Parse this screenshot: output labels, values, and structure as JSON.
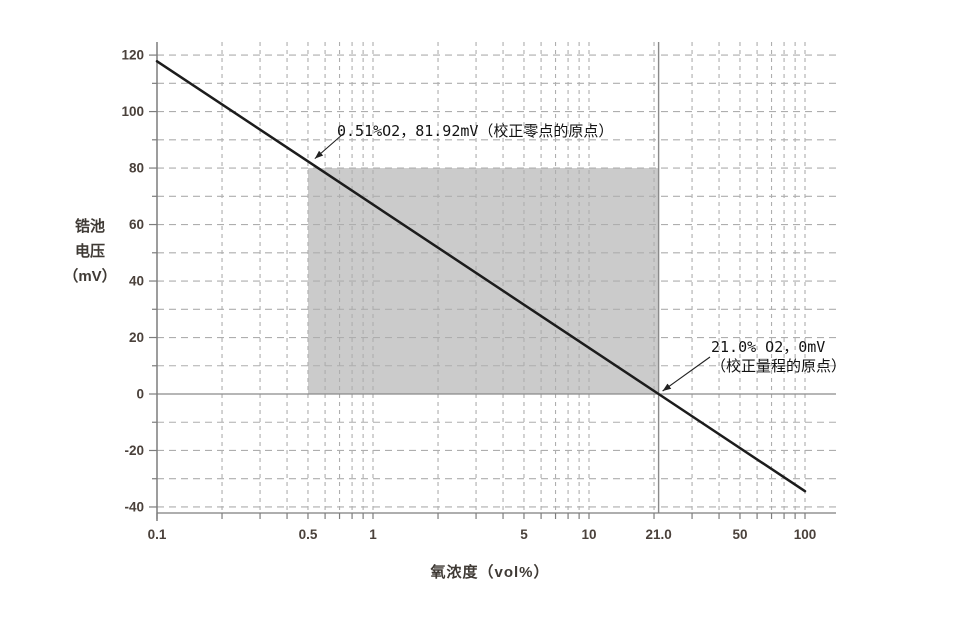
{
  "chart_data": {
    "type": "line",
    "title": "",
    "xlabel": "氧浓度（vol%）",
    "ylabel": "锆池电压（mV）",
    "ylabel_lines": [
      "锆池",
      "电压",
      "（mV）"
    ],
    "x_scale": "log",
    "xlim": [
      0.1,
      139
    ],
    "ylim": [
      -42,
      125
    ],
    "x_tick_values": [
      0.1,
      0.5,
      1,
      5,
      10,
      21.0,
      50,
      100
    ],
    "x_tick_labels": [
      "0.1",
      "0.5",
      "1",
      "5",
      "10",
      "21.0",
      "50",
      "100"
    ],
    "y_tick_values": [
      -40,
      -20,
      0,
      20,
      40,
      60,
      80,
      100,
      120
    ],
    "y_tick_labels": [
      "-40",
      "-20",
      "0",
      "20",
      "40",
      "60",
      "80",
      "100",
      "120"
    ],
    "x_minor_grid": [
      0.2,
      0.3,
      0.4,
      0.5,
      0.6,
      0.7,
      0.8,
      0.9,
      1,
      2,
      3,
      4,
      5,
      6,
      7,
      8,
      9,
      10,
      20,
      30,
      40,
      50,
      60,
      70,
      80,
      90,
      100
    ],
    "y_grid_values": [
      -40,
      -30,
      -20,
      -10,
      10,
      20,
      30,
      40,
      50,
      60,
      70,
      80,
      90,
      100,
      110,
      120
    ],
    "grid": true,
    "legend": "none",
    "series": [
      {
        "name": "锆池电压",
        "points": [
          [
            0.1,
            117.8
          ],
          [
            0.51,
            81.92
          ],
          [
            21.0,
            0
          ],
          [
            100,
            -34.4
          ]
        ],
        "color": "#1c1c1c"
      }
    ],
    "reference_lines": {
      "vertical_at_x": 21.0,
      "horizontal_at_y": 0
    },
    "shaded_region": {
      "x_from": 0.5,
      "x_to": 21.0,
      "y_from": 0,
      "y_to": 80,
      "color": "#cbcbcb"
    },
    "annotations": [
      {
        "text": "0.51%O2，81.92mV（校正零点的原点）",
        "point_x": 0.51,
        "point_y": 81.92
      },
      {
        "text_line1": "21.0% O2，0mV",
        "text_line2": "（校正量程的原点）",
        "point_x": 21.0,
        "point_y": 0
      }
    ],
    "colors": {
      "background": "#ffffff",
      "grid": "#aeaeae",
      "axis": "#7d7d7d",
      "reference": "#8a8a8a",
      "tick_label": "#4a413b",
      "annotation": "#121212",
      "line": "#1c1c1c",
      "shade": "#cbcbcb"
    }
  }
}
